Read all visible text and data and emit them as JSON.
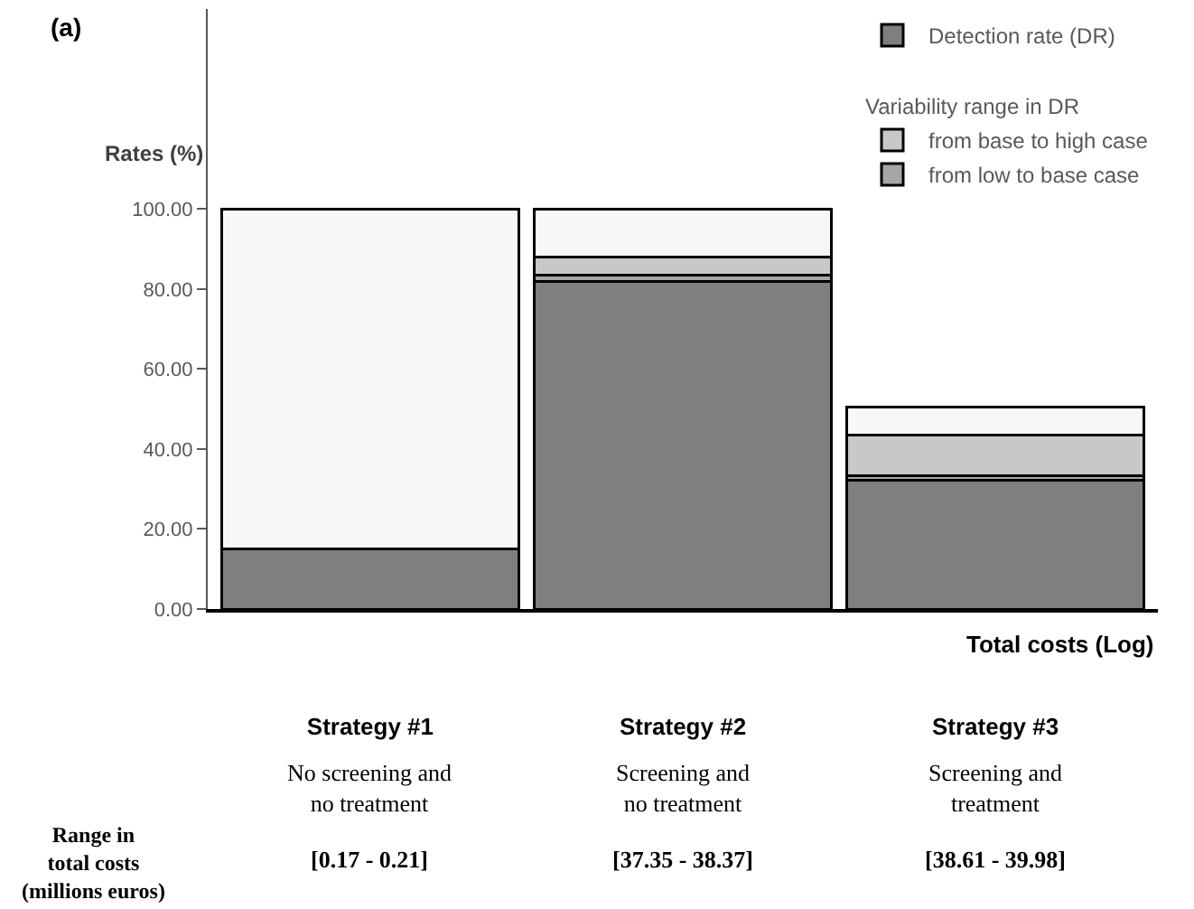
{
  "chart_data": {
    "type": "bar",
    "title": "(a)",
    "ylabel": "Rates (%)",
    "xlabel": "Total costs (Log)",
    "legend_title": "Variability range in DR",
    "categories": [
      "Strategy #1",
      "Strategy #2",
      "Strategy #3"
    ],
    "stacked": true,
    "series": [
      {
        "name": "Detection rate (DR)",
        "color": "#7f7f7f",
        "values": [
          15,
          82,
          32.3
        ]
      },
      {
        "name": "from low to base case",
        "color": "#a6a6a6",
        "values": [
          null,
          1.5,
          1.1
        ]
      },
      {
        "name": "from base to high case",
        "color": "#c8c8c8",
        "values": [
          null,
          4.5,
          10.1
        ]
      },
      {
        "color": "#f7f7f7",
        "values": [
          85,
          12,
          7
        ]
      }
    ],
    "ylim": [
      0,
      150
    ],
    "yticks": [
      {
        "value": 0,
        "label": "0.00"
      },
      {
        "value": 20,
        "label": "20.00"
      },
      {
        "value": 40,
        "label": "40.00"
      },
      {
        "value": 60,
        "label": "60.00"
      },
      {
        "value": 80,
        "label": "80.00"
      },
      {
        "value": 100,
        "label": "100.00"
      }
    ],
    "legend": "top right",
    "annotations": [
      "No screening and\nno treatment",
      "Screening and\nno treatment",
      "Screening and\ntreatment",
      "Range in\ntotal costs\n(millions euros)",
      "[0.17 - 0.21]",
      "[37.35 - 38.37]",
      "[38.61 - 39.98]"
    ]
  }
}
